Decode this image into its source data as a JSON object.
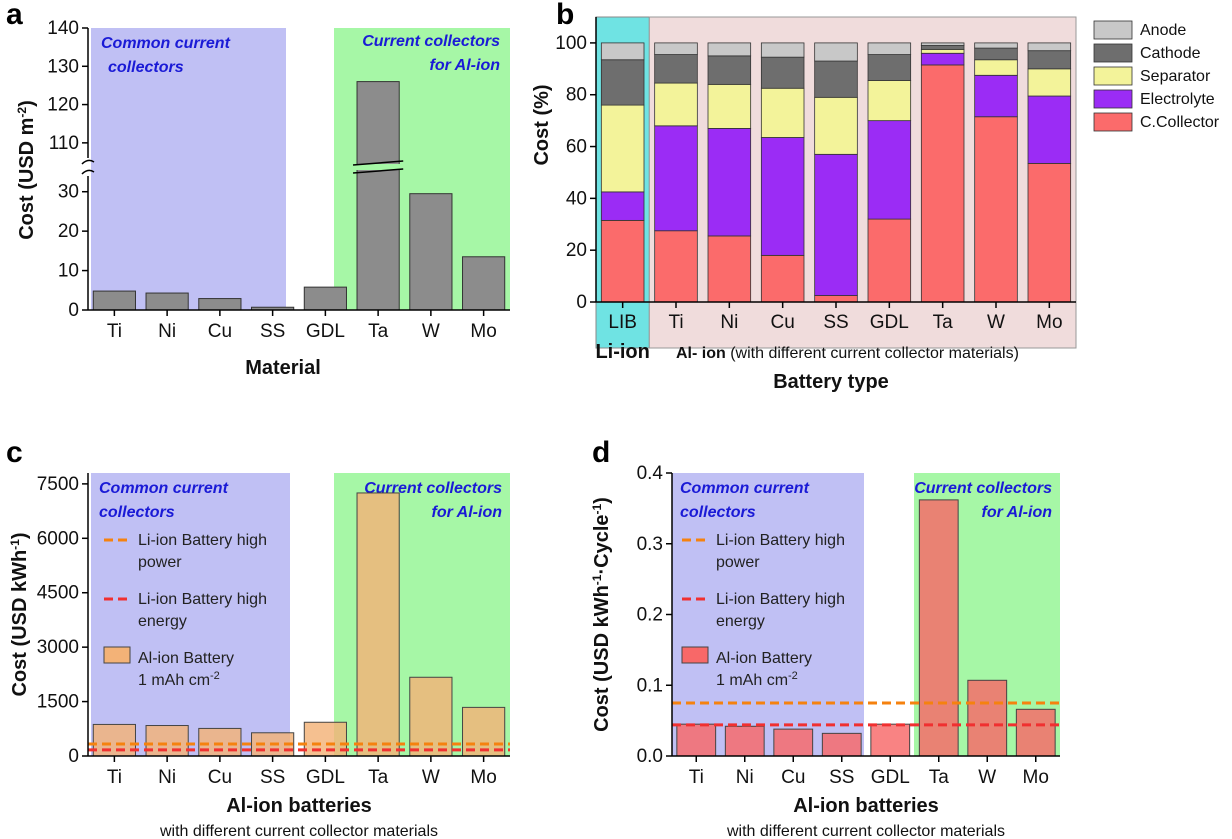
{
  "chart_data": [
    {
      "panel": "a",
      "type": "bar",
      "categories": [
        "Ti",
        "Ni",
        "Cu",
        "SS",
        "GDL",
        "Ta",
        "W",
        "Mo"
      ],
      "values": [
        4.8,
        4.3,
        2.9,
        0.7,
        5.8,
        126,
        29.5,
        13.5
      ],
      "ylabel": "Cost (USD m",
      "ylabel_sup": "-2",
      "ylabel_end": ")",
      "xlabel": "Material",
      "y_axis_break": {
        "lower_range": [
          0,
          35
        ],
        "upper_range": [
          105,
          140
        ]
      },
      "lower_ticks": [
        "0",
        "10",
        "20",
        "30"
      ],
      "upper_ticks": [
        "110",
        "120",
        "130",
        "140"
      ],
      "regions": [
        {
          "label_line1": "Common current",
          "label_line2": "collectors",
          "color": "#c0c0f4"
        },
        {
          "label_line1": "Current collectors",
          "label_line2": "for Al-ion",
          "color": "#a6f7a6"
        }
      ],
      "bar_color": "#8c8c8c"
    },
    {
      "panel": "b",
      "type": "bar",
      "stacked": true,
      "categories": [
        "LIB",
        "Ti",
        "Ni",
        "Cu",
        "SS",
        "GDL",
        "Ta",
        "W",
        "Mo"
      ],
      "series": [
        {
          "name": "C.Collector",
          "color": "#fb6b6b",
          "values": [
            31.5,
            27.5,
            25.5,
            18,
            2.5,
            32,
            91.5,
            71.5,
            53.5
          ]
        },
        {
          "name": "Electrolyte",
          "color": "#9b2cf5",
          "values": [
            11,
            40.5,
            41.5,
            45.5,
            54.5,
            38,
            4.5,
            16,
            26
          ]
        },
        {
          "name": "Separator",
          "color": "#f3f39a",
          "values": [
            33.5,
            16.5,
            17,
            19,
            22,
            15.5,
            1.5,
            6,
            10.5
          ]
        },
        {
          "name": "Cathode",
          "color": "#6e6e6e",
          "values": [
            17.5,
            11,
            11,
            12,
            14,
            10,
            1.5,
            4.5,
            7
          ]
        },
        {
          "name": "Anode",
          "color": "#c8c8c8",
          "values": [
            6.5,
            4.5,
            5,
            5.5,
            7,
            4.5,
            1,
            2,
            3
          ]
        }
      ],
      "ylabel": "Cost (%)",
      "xlabel": "Battery type",
      "ylim": [
        0,
        110
      ],
      "yticks": [
        "0",
        "20",
        "40",
        "60",
        "80",
        "100"
      ],
      "group_labels": {
        "lib": "Li-ion",
        "al_bold": "Al- ion",
        "al_rest": " (with different current collector materials)"
      },
      "legend": [
        "Anode",
        "Cathode",
        "Separator",
        "Electrolyte",
        "C.Collector"
      ],
      "regions": [
        {
          "color": "#6fe3e3"
        },
        {
          "color": "#f0dcdc"
        }
      ]
    },
    {
      "panel": "c",
      "type": "bar",
      "categories": [
        "Ti",
        "Ni",
        "Cu",
        "SS",
        "GDL",
        "Ta",
        "W",
        "Mo"
      ],
      "values": [
        870,
        840,
        760,
        640,
        930,
        7250,
        2170,
        1340
      ],
      "ylim": [
        0,
        7800
      ],
      "yticks": [
        "0",
        "1500",
        "3000",
        "4500",
        "6000",
        "7500"
      ],
      "ylabel": "Cost (USD kWh",
      "ylabel_sup": "-1",
      "ylabel_end": ")",
      "xlabel": "Al-ion batteries",
      "xlabel_sub": "with different current collector materials",
      "hlines": [
        {
          "name_line1": "Li-ion Battery high",
          "name_line2": "power",
          "value": 330,
          "color": "#f5820f"
        },
        {
          "name_line1": "Li-ion Battery high",
          "name_line2": "energy",
          "value": 170,
          "color": "#f03030"
        }
      ],
      "bar_legend": {
        "line1": "Al-ion Battery",
        "line2": "1 mAh cm",
        "sup": "-2"
      },
      "bar_color": "#f3b277",
      "regions": [
        {
          "label_line1": "Common current",
          "label_line2": "collectors",
          "color": "#c0c0f4"
        },
        {
          "label_line1": "Current collectors",
          "label_line2": "for Al-ion",
          "color": "#a6f7a6"
        }
      ]
    },
    {
      "panel": "d",
      "type": "bar",
      "categories": [
        "Ti",
        "Ni",
        "Cu",
        "SS",
        "GDL",
        "Ta",
        "W",
        "Mo"
      ],
      "values": [
        0.045,
        0.042,
        0.038,
        0.032,
        0.045,
        0.362,
        0.107,
        0.066
      ],
      "ylim": [
        0,
        0.4
      ],
      "yticks": [
        "0.0",
        "0.1",
        "0.2",
        "0.3",
        "0.4"
      ],
      "ylabel": "Cost (USD kWh",
      "ylabel_sup": "-1",
      "ylabel_mid": "·Cycle",
      "ylabel_sup2": "-1",
      "ylabel_end": ")",
      "xlabel": "Al-ion batteries",
      "xlabel_sub": "with different current collector materials",
      "hlines": [
        {
          "name_line1": "Li-ion Battery high",
          "name_line2": "power",
          "value": 0.075,
          "color": "#f5820f"
        },
        {
          "name_line1": "Li-ion Battery high",
          "name_line2": "energy",
          "value": 0.044,
          "color": "#f03030"
        }
      ],
      "bar_legend": {
        "line1": "Al-ion Battery",
        "line2": "1 mAh cm",
        "sup": "-2"
      },
      "bar_color": "#f86868",
      "regions": [
        {
          "label_line1": "Common current",
          "label_line2": "collectors",
          "color": "#c0c0f4"
        },
        {
          "label_line1": "Current collectors",
          "label_line2": "for Al-ion",
          "color": "#a6f7a6"
        }
      ]
    }
  ]
}
